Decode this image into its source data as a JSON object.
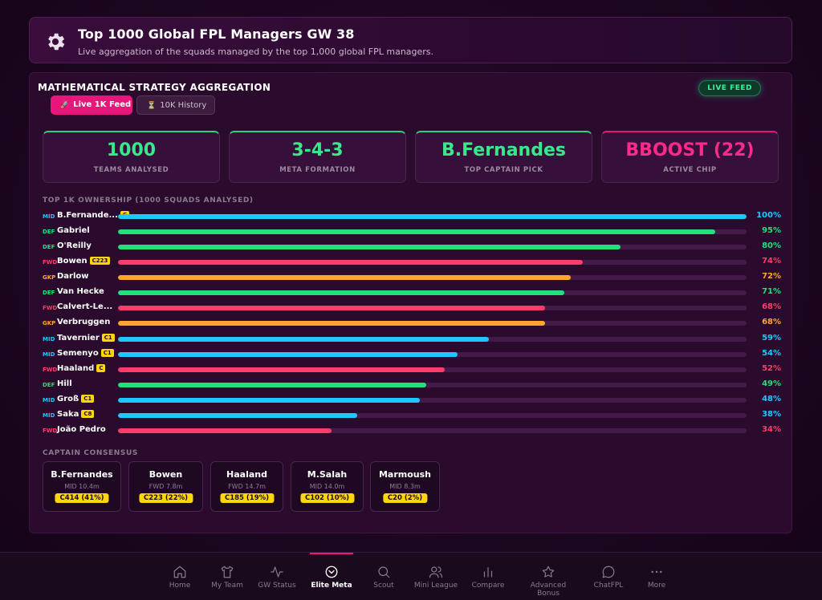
{
  "header": {
    "title": "Top 1000 Global FPL Managers GW 38",
    "subtitle": "Live aggregation of the squads managed by the top 1,000 global FPL managers.",
    "icon": "gear-icon"
  },
  "panel": {
    "title": "MATHEMATICAL STRATEGY AGGREGATION",
    "live_badge": "LIVE FEED",
    "tabs": [
      {
        "label": "Live 1K Feed",
        "icon": "rocket-icon",
        "active": true
      },
      {
        "label": "10K History",
        "icon": "hourglass-icon",
        "active": false
      }
    ]
  },
  "stats": [
    {
      "value": "1000",
      "label": "TEAMS ANALYSED"
    },
    {
      "value": "3-4-3",
      "label": "META FORMATION"
    },
    {
      "value": "B.Fernandes",
      "label": "TOP CAPTAIN PICK"
    },
    {
      "value": "BBOOST (22)",
      "label": "ACTIVE CHIP"
    }
  ],
  "ownership": {
    "title": "TOP 1K OWNERSHIP (1000 SQUADS ANALYSED)",
    "players": [
      {
        "pos": "MID",
        "name": "B.Fernande...",
        "badge": "C",
        "pct": 100,
        "pct_label": "100%"
      },
      {
        "pos": "DEF",
        "name": "Gabriel",
        "badge": "",
        "pct": 95,
        "pct_label": "95%"
      },
      {
        "pos": "DEF",
        "name": "O'Reilly",
        "badge": "",
        "pct": 80,
        "pct_label": "80%"
      },
      {
        "pos": "FWD",
        "name": "Bowen",
        "badge": "C223",
        "pct": 74,
        "pct_label": "74%"
      },
      {
        "pos": "GKP",
        "name": "Darlow",
        "badge": "",
        "pct": 72,
        "pct_label": "72%"
      },
      {
        "pos": "DEF",
        "name": "Van Hecke",
        "badge": "",
        "pct": 71,
        "pct_label": "71%"
      },
      {
        "pos": "FWD",
        "name": "Calvert-Le...",
        "badge": "",
        "pct": 68,
        "pct_label": "68%"
      },
      {
        "pos": "GKP",
        "name": "Verbruggen",
        "badge": "",
        "pct": 68,
        "pct_label": "68%"
      },
      {
        "pos": "MID",
        "name": "Tavernier",
        "badge": "C1",
        "pct": 59,
        "pct_label": "59%"
      },
      {
        "pos": "MID",
        "name": "Semenyo",
        "badge": "C1",
        "pct": 54,
        "pct_label": "54%"
      },
      {
        "pos": "FWD",
        "name": "Haaland",
        "badge": "C",
        "pct": 52,
        "pct_label": "52%"
      },
      {
        "pos": "DEF",
        "name": "Hill",
        "badge": "",
        "pct": 49,
        "pct_label": "49%"
      },
      {
        "pos": "MID",
        "name": "Groß",
        "badge": "C1",
        "pct": 48,
        "pct_label": "48%"
      },
      {
        "pos": "MID",
        "name": "Saka",
        "badge": "C8",
        "pct": 38,
        "pct_label": "38%"
      },
      {
        "pos": "FWD",
        "name": "João Pedro",
        "badge": "",
        "pct": 34,
        "pct_label": "34%"
      }
    ]
  },
  "captains": {
    "title": "CAPTAIN CONSENSUS",
    "items": [
      {
        "name": "B.Fernandes",
        "info": "MID 10.4m",
        "pill": "C414 (41%)"
      },
      {
        "name": "Bowen",
        "info": "FWD 7.8m",
        "pill": "C223 (22%)"
      },
      {
        "name": "Haaland",
        "info": "FWD 14.7m",
        "pill": "C185 (19%)"
      },
      {
        "name": "M.Salah",
        "info": "MID 14.0m",
        "pill": "C102 (10%)"
      },
      {
        "name": "Marmoush",
        "info": "MID 8.3m",
        "pill": "C20 (2%)"
      }
    ]
  },
  "colors": {
    "MID": "#1ec8ff",
    "DEF": "#22e07a",
    "FWD": "#ff3d6a",
    "GKP": "#ffa62b"
  },
  "nav": [
    {
      "label": "Home",
      "icon": "home-icon",
      "active": false
    },
    {
      "label": "My Team",
      "icon": "shirt-icon",
      "active": false
    },
    {
      "label": "GW Status",
      "icon": "pulse-icon",
      "active": false
    },
    {
      "label": "Elite Meta",
      "icon": "chevron-circle-icon",
      "active": true
    },
    {
      "label": "Scout",
      "icon": "search-icon",
      "active": false
    },
    {
      "label": "Mini League",
      "icon": "users-icon",
      "active": false
    },
    {
      "label": "Compare",
      "icon": "bar-chart-icon",
      "active": false
    },
    {
      "label": "Advanced Bonus",
      "icon": "star-icon",
      "active": false
    },
    {
      "label": "ChatFPL",
      "icon": "chat-icon",
      "active": false
    },
    {
      "label": "More",
      "icon": "dots-icon",
      "active": false
    }
  ]
}
